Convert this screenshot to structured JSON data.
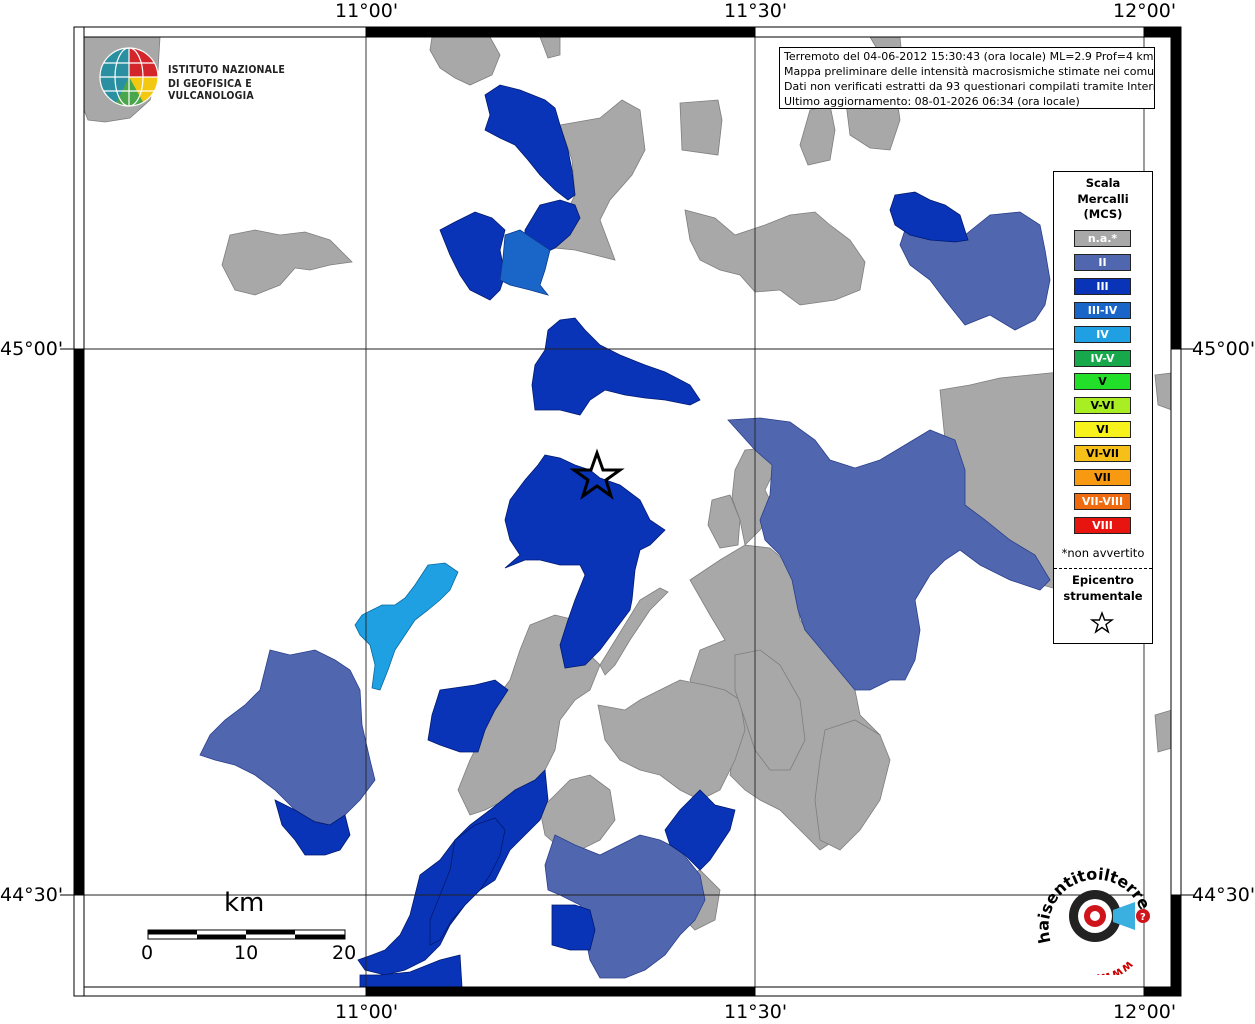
{
  "map": {
    "lon_labels": [
      "11°00'",
      "11°30'",
      "12°00'"
    ],
    "lat_labels": [
      "45°00'",
      "44°30'"
    ],
    "colors": {
      "na": "#a8a8a8",
      "II": "#5067b0",
      "III": "#0a34b8",
      "III-IV": "#1a66c8",
      "IV": "#1ea0e2"
    }
  },
  "logo": {
    "line1": "ISTITUTO NAZIONALE",
    "line2": "DI GEOFISICA E VULCANOLOGIA"
  },
  "info": {
    "line1": "Terremoto del 04-06-2012 15:30:43 (ora locale) ML=2.9 Prof=4 km",
    "line2": "Mappa preliminare delle intensità macrosismiche stimate nei comuni",
    "line3": "Dati non verificati estratti da 93 questionari compilati tramite Internet.",
    "line4": "Ultimo aggiornamento: 08-01-2026 06:34 (ora locale)"
  },
  "legend": {
    "title_line1": "Scala",
    "title_line2": "Mercalli",
    "title_line3": "(MCS)",
    "items": [
      {
        "label": "n.a.*",
        "color": "#a8a8a8",
        "text_color": "#ffffff"
      },
      {
        "label": "II",
        "color": "#5067b0",
        "text_color": "#ffffff"
      },
      {
        "label": "III",
        "color": "#0a34b8",
        "text_color": "#ffffff"
      },
      {
        "label": "III-IV",
        "color": "#1a66c8",
        "text_color": "#ffffff"
      },
      {
        "label": "IV",
        "color": "#1ea0e2",
        "text_color": "#ffffff"
      },
      {
        "label": "IV-V",
        "color": "#16a84a",
        "text_color": "#ffffff"
      },
      {
        "label": "V",
        "color": "#22e02a",
        "text_color": "#000000"
      },
      {
        "label": "V-VI",
        "color": "#a8ee22",
        "text_color": "#000000"
      },
      {
        "label": "VI",
        "color": "#f7f21c",
        "text_color": "#000000"
      },
      {
        "label": "VI-VII",
        "color": "#f7c018",
        "text_color": "#000000"
      },
      {
        "label": "VII",
        "color": "#f79a12",
        "text_color": "#000000"
      },
      {
        "label": "VII-VIII",
        "color": "#f06a10",
        "text_color": "#ffffff"
      },
      {
        "label": "VIII",
        "color": "#e81410",
        "text_color": "#ffffff"
      }
    ],
    "note": "*non avvertito",
    "epicentre_line1": "Epicentro",
    "epicentre_line2": "strumentale"
  },
  "scalebar": {
    "unit": "km",
    "ticks": [
      "0",
      "10",
      "20"
    ]
  },
  "watermark": {
    "text": "haisentitoilterremoto.it",
    "sub": "www."
  }
}
